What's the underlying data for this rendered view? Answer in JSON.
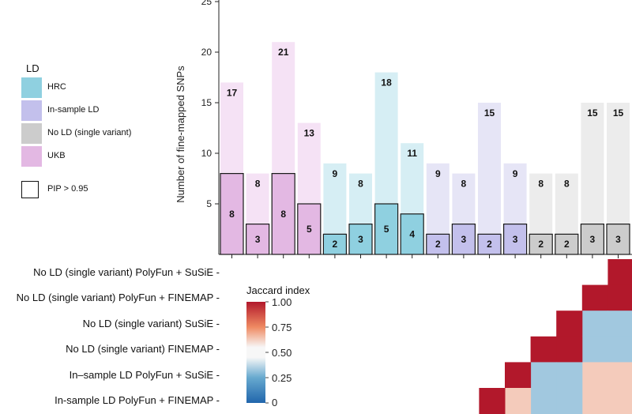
{
  "legend": {
    "title": "LD",
    "items": [
      {
        "label": "HRC",
        "color": "#8fd0e0"
      },
      {
        "label": "In-sample LD",
        "color": "#c3c0ec"
      },
      {
        "label": "No LD (single variant)",
        "color": "#cccccc"
      },
      {
        "label": "UKB",
        "color": "#e3b8e3"
      }
    ],
    "pip_label": "PIP > 0.95"
  },
  "heatmap_legend": {
    "title": "Jaccard index",
    "ticks": [
      "1.00",
      "0.75",
      "0.50",
      "0.25",
      "0"
    ]
  },
  "row_labels": [
    "No LD (single variant) PolyFun + SuSiE -",
    "No LD (single variant) PolyFun + FINEMAP -",
    "No LD (single variant) SuSiE -",
    "No LD (single variant) FINEMAP -",
    "In–sample LD PolyFun + SuSiE -",
    "In-sample LD PolyFun + FINEMAP -"
  ],
  "chart_data": {
    "type": "bar",
    "ylabel": "Number of fine-mapped SNPs",
    "ylim": [
      0,
      25
    ],
    "yticks": [
      5,
      10,
      15,
      20,
      25
    ],
    "bars": [
      {
        "group": "UKB",
        "total": 17,
        "pip": 8
      },
      {
        "group": "UKB",
        "total": 8,
        "pip": 3
      },
      {
        "group": "UKB",
        "total": 21,
        "pip": 8
      },
      {
        "group": "UKB",
        "total": 13,
        "pip": 5
      },
      {
        "group": "HRC",
        "total": 9,
        "pip": 2
      },
      {
        "group": "HRC",
        "total": 8,
        "pip": 3
      },
      {
        "group": "HRC",
        "total": 18,
        "pip": 5
      },
      {
        "group": "HRC",
        "total": 11,
        "pip": 4
      },
      {
        "group": "In-sample LD",
        "total": 9,
        "pip": 2
      },
      {
        "group": "In-sample LD",
        "total": 8,
        "pip": 3
      },
      {
        "group": "In-sample LD",
        "total": 15,
        "pip": 2
      },
      {
        "group": "In-sample LD",
        "total": 9,
        "pip": 3
      },
      {
        "group": "No LD (single variant)",
        "total": 8,
        "pip": 2
      },
      {
        "group": "No LD (single variant)",
        "total": 8,
        "pip": 2
      },
      {
        "group": "No LD (single variant)",
        "total": 15,
        "pip": 3
      },
      {
        "group": "No LD (single variant)",
        "total": 15,
        "pip": 3
      }
    ],
    "group_colors": {
      "UKB": {
        "light": "#f5e2f5",
        "dark": "#e3b8e3"
      },
      "HRC": {
        "light": "#d6eef4",
        "dark": "#8fd0e0"
      },
      "In-sample LD": {
        "light": "#e6e5f6",
        "dark": "#c3c0ec"
      },
      "No LD (single variant)": {
        "light": "#ececec",
        "dark": "#cccccc"
      }
    },
    "heatmap": {
      "rows": [
        "No LD (single variant) PolyFun + SuSiE",
        "No LD (single variant) PolyFun + FINEMAP",
        "No LD (single variant) SuSiE",
        "No LD (single variant) FINEMAP",
        "In-sample LD PolyFun + SuSiE",
        "In-sample LD PolyFun + FINEMAP"
      ],
      "values": [
        [
          1.0,
          null,
          null,
          null,
          null,
          null
        ],
        [
          1.0,
          1.0,
          null,
          null,
          null,
          null
        ],
        [
          0.35,
          0.35,
          1.0,
          null,
          null,
          null
        ],
        [
          0.35,
          0.35,
          1.0,
          1.0,
          null,
          null
        ],
        [
          0.6,
          0.6,
          0.35,
          0.35,
          1.0,
          null
        ],
        [
          0.6,
          0.6,
          0.35,
          0.35,
          0.6,
          1.0
        ]
      ]
    }
  }
}
